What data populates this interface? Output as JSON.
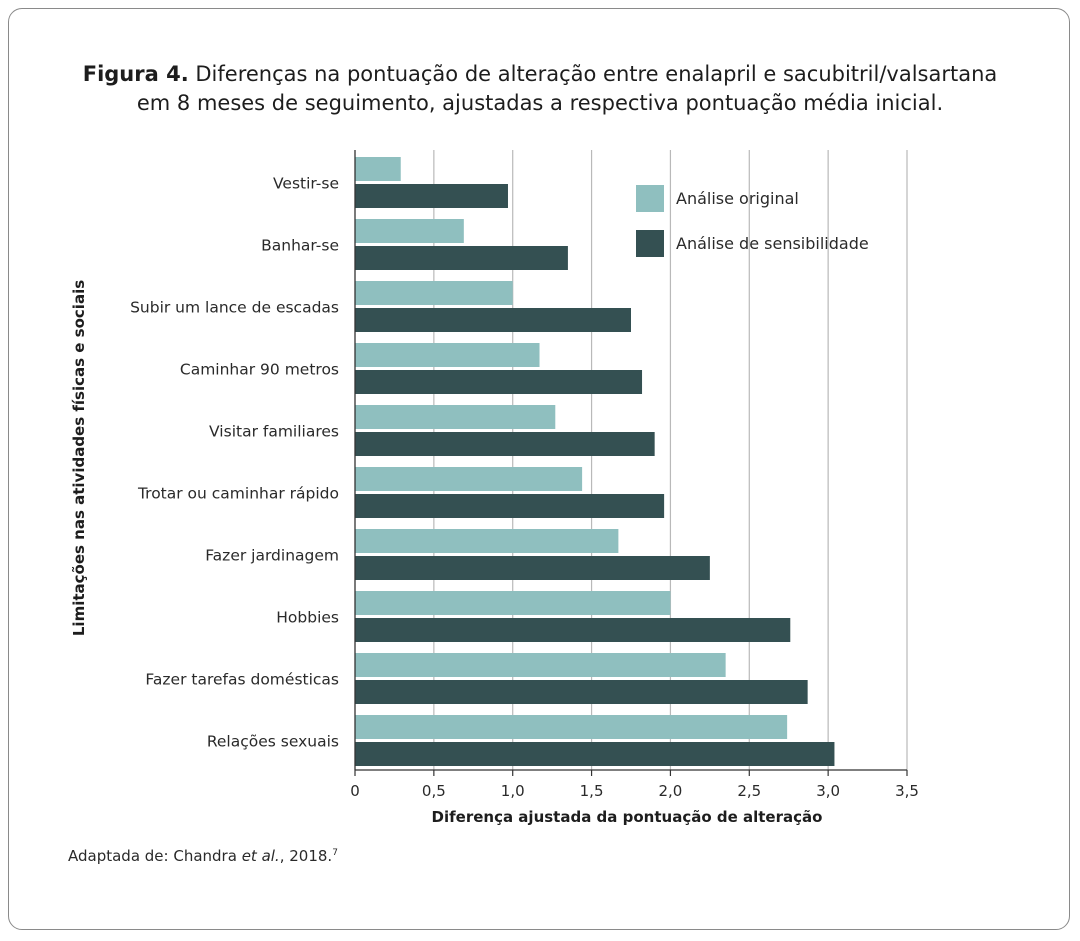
{
  "figure": {
    "title_bold": "Figura 4.",
    "title_text": "Diferenças na pontuação de alteração entre enalapril e sacubitril/valsartana",
    "title_line2": "em 8 meses de seguimento, ajustadas a respectiva pontuação média inicial.",
    "source_prefix": "Adaptada de: Chandra ",
    "source_italic": "et al.",
    "source_suffix": ", 2018.",
    "source_sup": "7"
  },
  "chart_data": {
    "type": "bar",
    "orientation": "horizontal",
    "title": "Diferenças na pontuação de alteração entre enalapril e sacubitril/valsartana em 8 meses de seguimento, ajustadas a respectiva pontuação média inicial.",
    "xlabel": "Diferença ajustada da pontuação de alteração",
    "ylabel": "Limitações nas atividades físicas e sociais",
    "xlim": [
      0,
      3.5
    ],
    "xticks": [
      0,
      0.5,
      1.0,
      1.5,
      2.0,
      2.5,
      3.0,
      3.5
    ],
    "xtick_labels": [
      "0",
      "0,5",
      "1,0",
      "1,5",
      "2,0",
      "2,5",
      "3,0",
      "3,5"
    ],
    "grid": "vertical",
    "legend_position": "top-right",
    "categories": [
      "Vestir-se",
      "Banhar-se",
      "Subir um lance de escadas",
      "Caminhar 90 metros",
      "Visitar familiares",
      "Trotar ou caminhar rápido",
      "Fazer jardinagem",
      "Hobbies",
      "Fazer tarefas domésticas",
      "Relações sexuais"
    ],
    "series": [
      {
        "name": "Análise original",
        "color": "#8fbfbf",
        "values": [
          0.29,
          0.69,
          1.0,
          1.17,
          1.27,
          1.44,
          1.67,
          2.0,
          2.35,
          2.74
        ]
      },
      {
        "name": "Análise de sensibilidade",
        "color": "#345052",
        "values": [
          0.97,
          1.35,
          1.75,
          1.82,
          1.9,
          1.96,
          2.25,
          2.76,
          2.87,
          3.04
        ]
      }
    ]
  }
}
